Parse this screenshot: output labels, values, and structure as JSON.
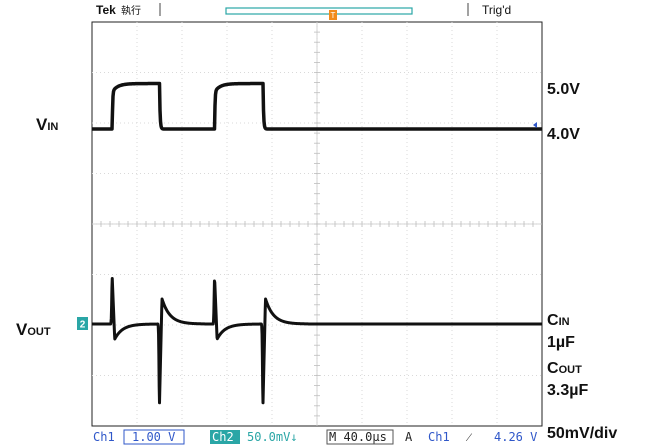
{
  "header": {
    "brand": "Tek",
    "run_state": "執行",
    "trigger_status": "Trig'd"
  },
  "markers": {
    "trigger_position": "T",
    "trigger_offset_marker": "T",
    "ch2_ground_marker": "2"
  },
  "labels": {
    "vin": "V",
    "vin_sub": "IN",
    "vout": "V",
    "vout_sub": "OUT",
    "vin_high": "5.0V",
    "vin_low": "4.0V",
    "cin": "C",
    "cin_sub": "IN",
    "cin_value": "1µF",
    "cout": "C",
    "cout_sub": "OUT",
    "cout_value": "3.3µF",
    "vout_scale": "50mV/div"
  },
  "status_bar": {
    "ch1_label": "Ch1",
    "ch1_scale": "1.00 V",
    "ch2_label": "Ch2",
    "ch2_scale": "50.0mV↓",
    "timebase": "M 40.0µs",
    "trigger_mode": "A",
    "trigger_source": "Ch1",
    "trigger_slope": "⁄",
    "trigger_level": "4.26 V"
  },
  "colors": {
    "trace": "#111111",
    "grid": "#d9d9d9",
    "accent_teal": "#2aa6a6",
    "marker_orange": "#f28c1c",
    "blue_marker": "#2f57c9"
  },
  "chart_data": {
    "type": "line",
    "x_unit": "µs",
    "time_per_div_us": 40,
    "grid": true,
    "divisions": {
      "x": 10,
      "y": 8
    },
    "series": [
      {
        "name": "Ch1",
        "units": "V",
        "volts_per_div": 1.0,
        "low": 4.0,
        "high": 5.0,
        "steps": [
          {
            "t": 18,
            "to": "high"
          },
          {
            "t": 60,
            "to": "low"
          },
          {
            "t": 109,
            "to": "high"
          },
          {
            "t": 152,
            "to": "low"
          }
        ]
      },
      {
        "name": "Ch2",
        "units": "mV",
        "mv_per_div": 50,
        "baseline": 0,
        "transients": [
          {
            "t": 18,
            "peak_mv": 45,
            "undershoot_mv": -15
          },
          {
            "t": 60,
            "peak_mv": -78,
            "overshoot_mv": 25
          },
          {
            "t": 109,
            "peak_mv": 45,
            "undershoot_mv": -15
          },
          {
            "t": 152,
            "peak_mv": -78,
            "overshoot_mv": 25
          }
        ]
      }
    ]
  }
}
